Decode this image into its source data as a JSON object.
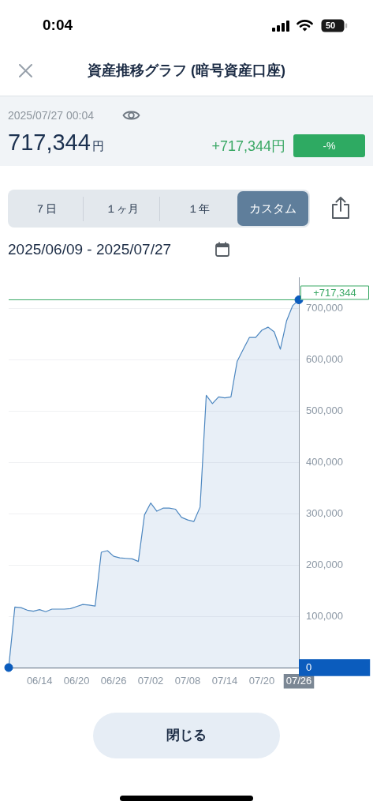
{
  "chart_data": {
    "type": "area",
    "title": "資産推移グラフ (暗号資産口座)",
    "subtitle": "2025/06/09 - 2025/07/27",
    "annotations": [
      "0:04",
      "50",
      "2025/07/27 00:04",
      "717,344円",
      "+717,344円",
      "-%",
      "７日",
      "１ヶ月",
      "１年",
      "カスタム",
      "閉じる"
    ],
    "x": [
      "--06-09",
      "--06-10",
      "--06-11",
      "--06-12",
      "--06-13",
      "--06-14",
      "--06-15",
      "--06-16",
      "--06-17",
      "--06-18",
      "--06-19",
      "--06-20",
      "--06-21",
      "--06-22",
      "--06-23",
      "--06-24",
      "--06-25",
      "--06-26",
      "--06-27",
      "--06-28",
      "--06-29",
      "--06-30",
      "--07-01",
      "--07-02",
      "--07-03",
      "--07-04",
      "--07-05",
      "--07-06",
      "--07-07",
      "--07-08",
      "--07-09",
      "--07-10",
      "--07-11",
      "--07-12",
      "--07-13",
      "--07-14",
      "--07-15",
      "--07-16",
      "--07-17",
      "--07-18",
      "--07-19",
      "--07-20",
      "--07-21",
      "--07-22",
      "--07-23",
      "--07-24",
      "--07-25",
      "--07-26"
    ],
    "series": [
      {
        "color": "#4d87c0",
        "values": [
          0,
          118000,
          117000,
          112000,
          110000,
          113000,
          109000,
          114000,
          114000,
          114000,
          115000,
          119000,
          123000,
          122000,
          120000,
          225000,
          228000,
          217000,
          214000,
          213000,
          212000,
          207000,
          298000,
          321000,
          305000,
          311000,
          311000,
          309000,
          293000,
          288000,
          285000,
          313000,
          531000,
          515000,
          528000,
          526000,
          528000,
          597000,
          621000,
          644000,
          644000,
          658000,
          664000,
          655000,
          621000,
          676000,
          706000,
          717344
        ]
      },
      {
        "type": "scatter",
        "x": [
          "--06-09",
          "--07-26"
        ],
        "values": [
          0,
          717344
        ],
        "color": "#0b5cbd",
        "marker": "circle"
      }
    ],
    "xlim": [
      "--06-09",
      "--07-26"
    ],
    "xticks": [
      {
        "value": "--06-14",
        "label": "06/14"
      },
      {
        "value": "--06-20",
        "label": "06/20"
      },
      {
        "value": "--06-26",
        "label": "06/26"
      },
      {
        "value": "--07-02",
        "label": "07/02"
      },
      {
        "value": "--07-08",
        "label": "07/08"
      },
      {
        "value": "--07-14",
        "label": "07/14"
      },
      {
        "value": "--07-20",
        "label": "07/20"
      },
      {
        "value": "--07-26",
        "label": "07/26"
      }
    ],
    "ylim": [
      0,
      760000
    ],
    "yticks": [
      0,
      {
        "value": 100000,
        "label": "100,000"
      },
      {
        "value": 200000,
        "label": "200,000"
      },
      {
        "value": 300000,
        "label": "300,000"
      },
      {
        "value": 400000,
        "label": "400,000"
      },
      {
        "value": 500000,
        "label": "500,000"
      },
      {
        "value": 600000,
        "label": "600,000"
      },
      {
        "value": 700000,
        "label": "700,000"
      }
    ],
    "ref_lines": [
      {
        "axis": "y",
        "value": 717344,
        "label": "+717,344",
        "color": "#3aa865"
      }
    ],
    "grid": "y",
    "legend": false,
    "marker": "none"
  }
}
